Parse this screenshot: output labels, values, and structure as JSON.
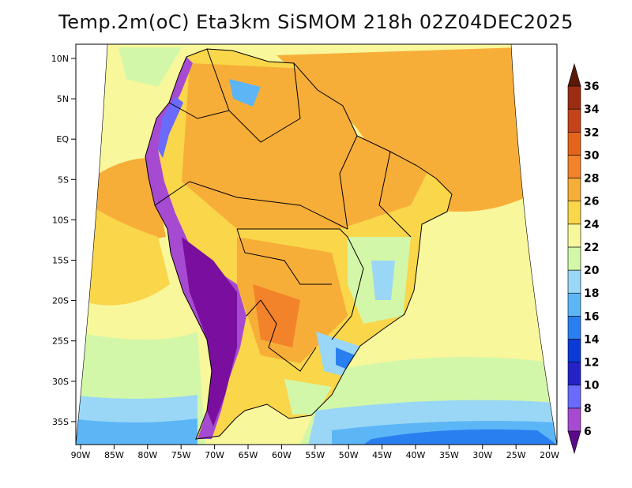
{
  "title": "Temp.2m(oC) Eta3km SiSMOM 218h 02Z04DEC2025",
  "map": {
    "variable": "Temp.2m",
    "unit": "oC",
    "model": "Eta3km SiSMOM",
    "lon_range": [
      -91,
      -20
    ],
    "lat_range": [
      -38,
      11
    ],
    "lon_ticks": [
      "90W",
      "85W",
      "80W",
      "75W",
      "70W",
      "65W",
      "60W",
      "55W",
      "50W",
      "45W",
      "40W",
      "35W",
      "30W",
      "25W",
      "20W"
    ],
    "lat_ticks": [
      "10N",
      "5N",
      "EQ",
      "5S",
      "10S",
      "15S",
      "20S",
      "25S",
      "30S",
      "35S"
    ]
  },
  "colorbar": {
    "levels": [
      "6",
      "8",
      "10",
      "12",
      "14",
      "16",
      "18",
      "20",
      "22",
      "24",
      "26",
      "28",
      "30",
      "32",
      "34",
      "36"
    ],
    "colors": [
      "#7a0e9e",
      "#a64bd1",
      "#6a6afc",
      "#2323c8",
      "#0a3ad7",
      "#2a7ff0",
      "#5cb6f6",
      "#9ad7f6",
      "#d3f7a8",
      "#f8f79c",
      "#f9d64a",
      "#f7ae39",
      "#f2832a",
      "#e5641b",
      "#c3431b",
      "#9b2e12",
      "#6b2006"
    ],
    "below_color": "#5a0a8a",
    "above_color": "#5a1a06"
  }
}
